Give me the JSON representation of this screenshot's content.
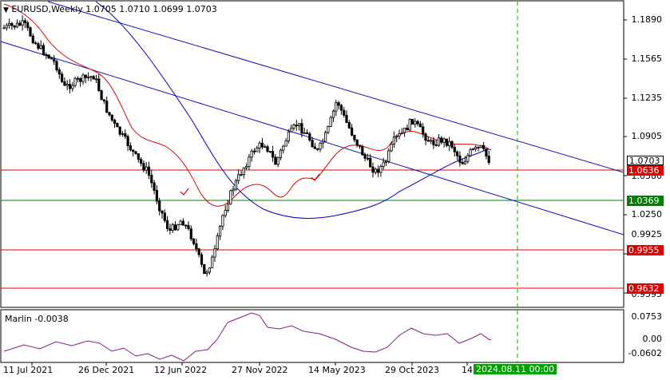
{
  "header": {
    "symbol_line": "EURUSD,Weekly  1.0705 1.0710 1.0699 1.0703"
  },
  "indicator": {
    "label": "Marlin -0.0038",
    "axis_labels": [
      "0.0753",
      "0.00",
      "-0.0602"
    ]
  },
  "price_axis": {
    "labels": [
      "1.1890",
      "1.1565",
      "1.1235",
      "1.0905",
      "1.0580",
      "1.0250",
      "0.9925",
      "0.9595"
    ],
    "current_price": "1.0703",
    "levels": [
      {
        "label": "1.0636",
        "color": "#e00000"
      },
      {
        "label": "1.0369",
        "color": "#008000"
      },
      {
        "label": "0.9955",
        "color": "#e00000"
      },
      {
        "label": "0.9632",
        "color": "#e00000"
      }
    ]
  },
  "time_axis": {
    "labels": [
      "11 Jul 2021",
      "26 Dec 2021",
      "12 Jun 2022",
      "27 Nov 2022",
      "14 May 2023",
      "29 Oct 2023",
      "14"
    ],
    "cursor_label": "2024.08.11 00:00"
  },
  "colors": {
    "candles": "#000000",
    "red_ma": "#e00000",
    "blue_ma": "#0000c8",
    "channel": "#1010c0",
    "oscillator": "#8b1a8b",
    "green_level": "#008000",
    "cursor_line": "#00a000"
  }
}
